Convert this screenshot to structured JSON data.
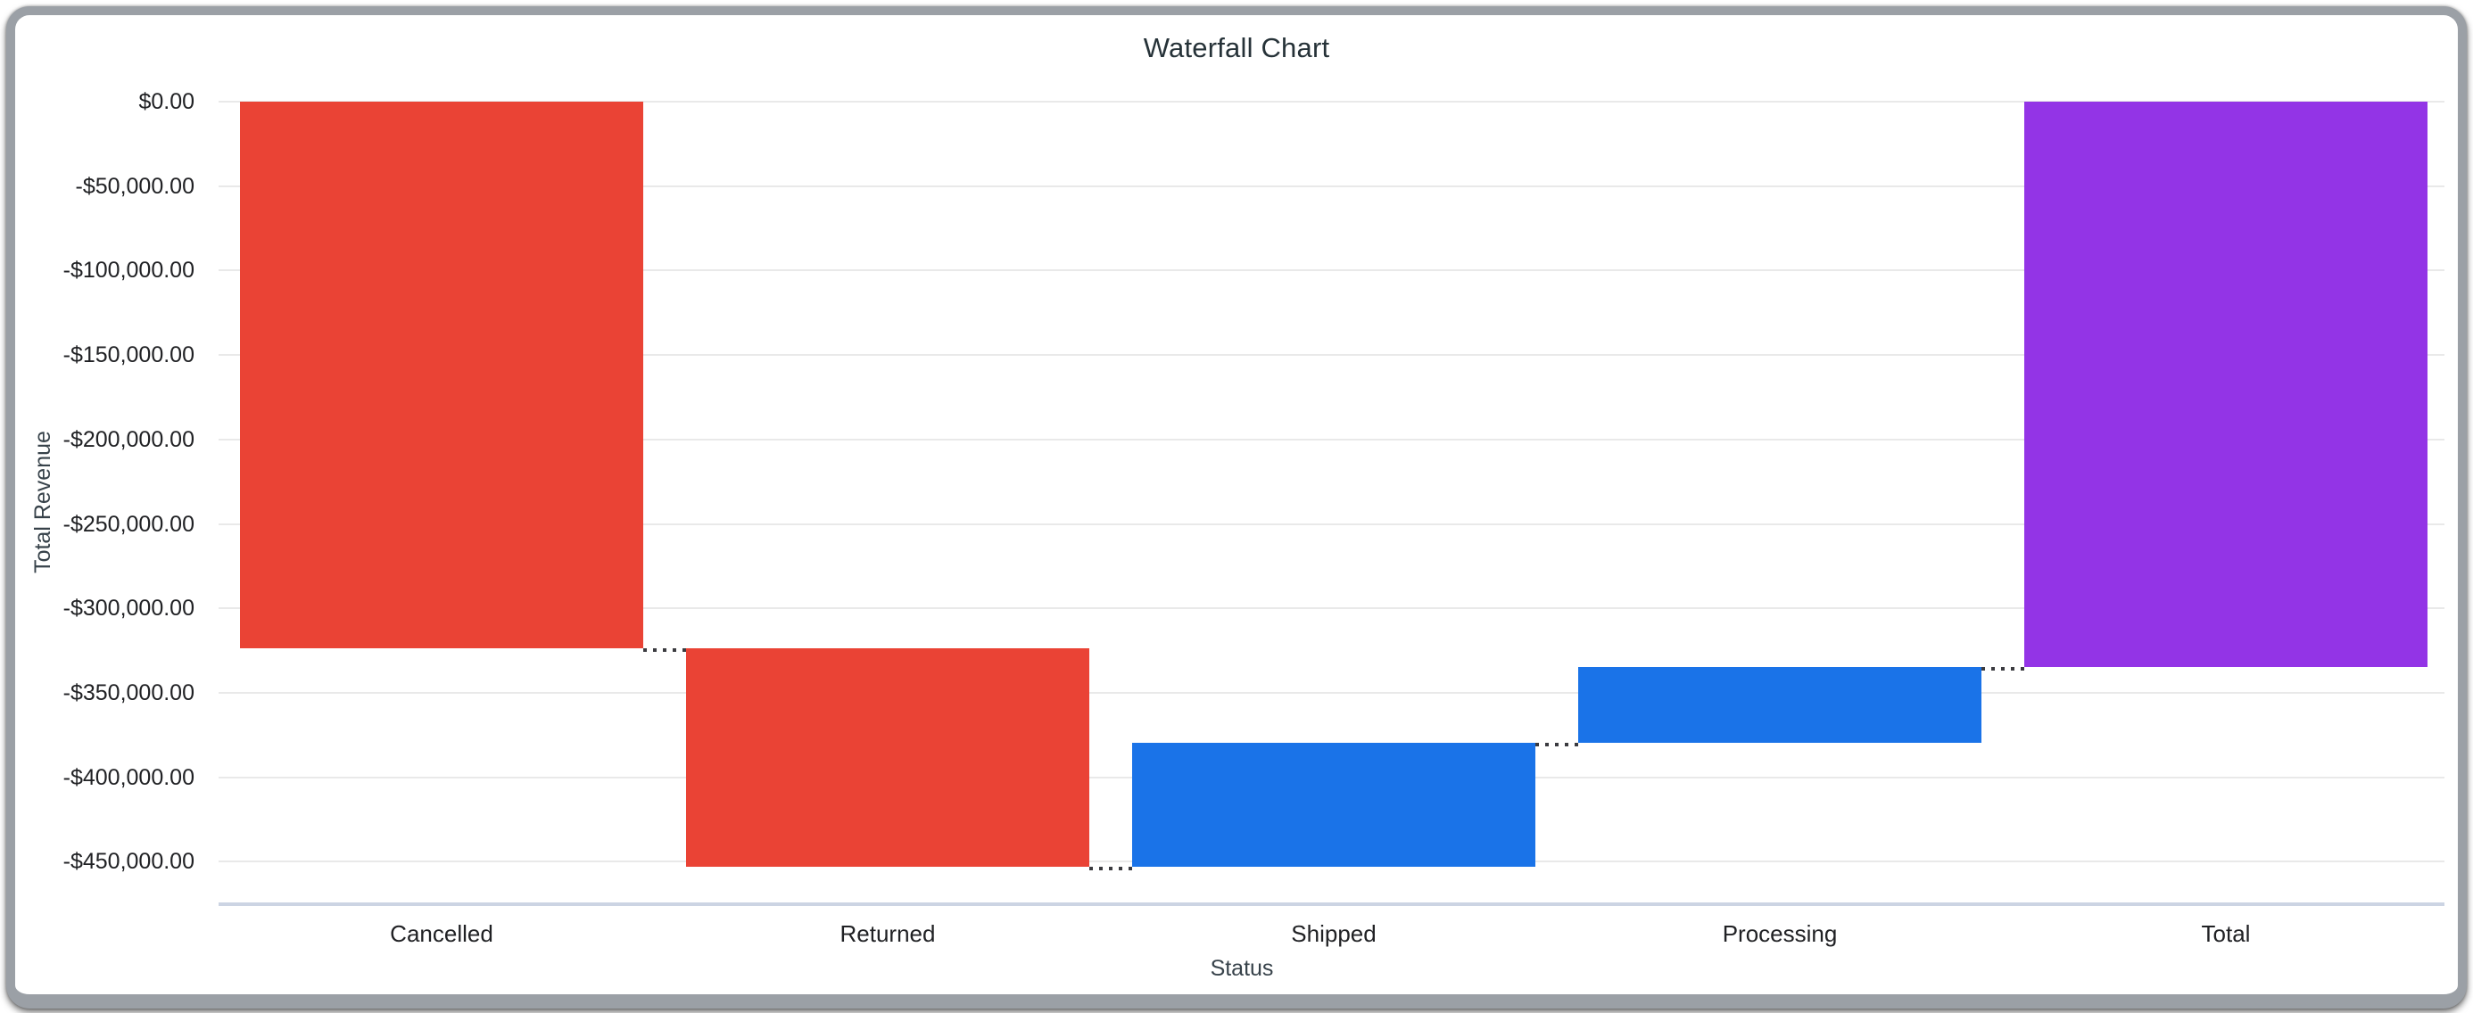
{
  "chart_data": {
    "type": "waterfall",
    "title": "Waterfall Chart",
    "xlabel": "Status",
    "ylabel": "Total Revenue",
    "categories": [
      "Cancelled",
      "Returned",
      "Shipped",
      "Processing",
      "Total"
    ],
    "series": [
      {
        "name": "Cancelled",
        "change": -323800,
        "cumulative_start": 0,
        "cumulative_end": -323800,
        "role": "decrease",
        "color": "#EA4335"
      },
      {
        "name": "Returned",
        "change": -129400,
        "cumulative_start": -323800,
        "cumulative_end": -453200,
        "role": "decrease",
        "color": "#EA4335"
      },
      {
        "name": "Shipped",
        "change": 73400,
        "cumulative_start": -453200,
        "cumulative_end": -379800,
        "role": "increase",
        "color": "#1A73E8"
      },
      {
        "name": "Processing",
        "change": 45200,
        "cumulative_start": -379800,
        "cumulative_end": -334600,
        "role": "increase",
        "color": "#1A73E8"
      },
      {
        "name": "Total",
        "change": -334600,
        "cumulative_start": 0,
        "cumulative_end": -334600,
        "role": "total",
        "color": "#9334E6"
      }
    ],
    "y_axis": {
      "ticks": [
        {
          "label": "$0.00",
          "value": 0
        },
        {
          "label": "-$50,000.00",
          "value": -50000
        },
        {
          "label": "-$100,000.00",
          "value": -100000
        },
        {
          "label": "-$150,000.00",
          "value": -150000
        },
        {
          "label": "-$200,000.00",
          "value": -200000
        },
        {
          "label": "-$250,000.00",
          "value": -250000
        },
        {
          "label": "-$300,000.00",
          "value": -300000
        },
        {
          "label": "-$350,000.00",
          "value": -350000
        },
        {
          "label": "-$400,000.00",
          "value": -400000
        },
        {
          "label": "-$450,000.00",
          "value": -450000
        }
      ],
      "range_top": 0,
      "range_bottom": -475000
    },
    "grid": true,
    "legend": "none",
    "colors": {
      "decrease": "#EA4335",
      "increase": "#1A73E8",
      "total": "#9334E6",
      "gridline": "#e9e9e9",
      "axis_line": "#ccd4e3",
      "connector": "#3b3b40",
      "title_text": "#263238",
      "tick_text": "#202124",
      "axis_title_text": "#37424a"
    }
  }
}
